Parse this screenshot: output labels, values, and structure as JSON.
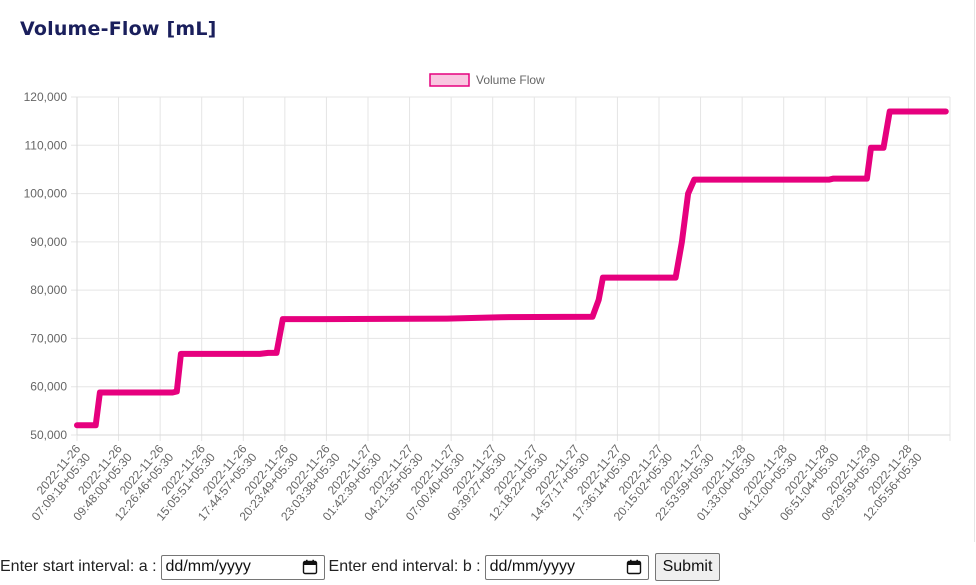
{
  "card": {
    "title": "Volume-Flow [mL]"
  },
  "chart_data": {
    "type": "line",
    "title": "",
    "legend": {
      "label": "Volume Flow",
      "position": "top"
    },
    "colors": {
      "line": "#e6007e",
      "legend_fill": "#f9c6e0",
      "grid": "#e5e5e5"
    },
    "ylim": [
      50000,
      120000
    ],
    "yticks": [
      "50,000",
      "60,000",
      "70,000",
      "80,000",
      "90,000",
      "100,000",
      "110,000",
      "120,000"
    ],
    "xticks": [
      [
        "2022-11-26",
        "07:09:18+05:30"
      ],
      [
        "2022-11-26",
        "09:48:00+05:30"
      ],
      [
        "2022-11-26",
        "12:26:46+05:30"
      ],
      [
        "2022-11-26",
        "15:05:51+05:30"
      ],
      [
        "2022-11-26",
        "17:44:57+05:30"
      ],
      [
        "2022-11-26",
        "20:23:49+05:30"
      ],
      [
        "2022-11-26",
        "23:03:38+05:30"
      ],
      [
        "2022-11-27",
        "01:42:39+05:30"
      ],
      [
        "2022-11-27",
        "04:21:35+05:30"
      ],
      [
        "2022-11-27",
        "07:00:40+05:30"
      ],
      [
        "2022-11-27",
        "09:39:27+05:30"
      ],
      [
        "2022-11-27",
        "12:18:22+05:30"
      ],
      [
        "2022-11-27",
        "14:57:17+05:30"
      ],
      [
        "2022-11-27",
        "17:36:14+05:30"
      ],
      [
        "2022-11-27",
        "20:15:02+05:30"
      ],
      [
        "2022-11-27",
        "22:53:59+05:30"
      ],
      [
        "2022-11-28",
        "01:33:00+05:30"
      ],
      [
        "2022-11-28",
        "04:12:00+05:30"
      ],
      [
        "2022-11-28",
        "06:51:04+05:30"
      ],
      [
        "2022-11-28",
        "09:29:59+05:30"
      ],
      [
        "2022-11-28",
        "12:05:56+05:30"
      ]
    ],
    "series": [
      {
        "name": "Volume Flow",
        "points": [
          [
            0.0,
            52000
          ],
          [
            0.45,
            52000
          ],
          [
            0.55,
            58800
          ],
          [
            2.3,
            58800
          ],
          [
            2.4,
            59000
          ],
          [
            2.5,
            66800
          ],
          [
            4.4,
            66800
          ],
          [
            4.6,
            67000
          ],
          [
            4.8,
            67000
          ],
          [
            4.95,
            74000
          ],
          [
            5.9,
            74000
          ],
          [
            8.9,
            74100
          ],
          [
            10.2,
            74400
          ],
          [
            12.4,
            74500
          ],
          [
            12.55,
            78000
          ],
          [
            12.65,
            82600
          ],
          [
            14.4,
            82600
          ],
          [
            14.55,
            90000
          ],
          [
            14.7,
            100000
          ],
          [
            14.85,
            102900
          ],
          [
            18.1,
            102900
          ],
          [
            18.2,
            103100
          ],
          [
            19.0,
            103100
          ],
          [
            19.1,
            109500
          ],
          [
            19.4,
            109500
          ],
          [
            19.55,
            117000
          ],
          [
            20.9,
            117000
          ]
        ]
      }
    ]
  },
  "form": {
    "start_label": "Enter start interval: a :",
    "start_placeholder": "dd/mm/yyyy",
    "end_label": "Enter end interval: b :",
    "end_placeholder": "dd/mm/yyyy",
    "submit_label": "Submit",
    "calendar_icon": "calendar-icon"
  }
}
